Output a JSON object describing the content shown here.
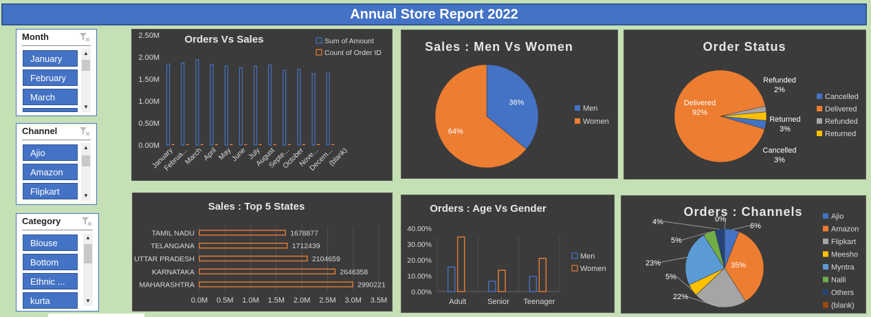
{
  "title": "Annual Store Report 2022",
  "slicers": {
    "month": {
      "header": "Month",
      "items": [
        "January",
        "February",
        "March",
        ""
      ]
    },
    "channel": {
      "header": "Channel",
      "items": [
        "Ajio",
        "Amazon",
        "Flipkart"
      ]
    },
    "category": {
      "header": "Category",
      "items": [
        "Blouse",
        "Bottom",
        "Ethnic ...",
        "kurta"
      ]
    }
  },
  "colors": {
    "blue": "#4472c4",
    "orange": "#ed7d31",
    "gray": "#a5a5a5",
    "yellow": "#ffc000",
    "lightblue": "#5b9bd5",
    "green": "#70ad47",
    "navy": "#264478",
    "brown": "#9e480e"
  },
  "chart_data": [
    {
      "id": "orders_vs_sales",
      "type": "bar",
      "title": "Orders Vs Sales",
      "categories": [
        "January",
        "Februa...",
        "March",
        "April",
        "May",
        "June",
        "July",
        "August",
        "Septe...",
        "October",
        "Nove...",
        "Decem...",
        "(blank)"
      ],
      "series": [
        {
          "name": "Sum of Amount",
          "color": "#4472c4",
          "values": [
            1840000,
            1870000,
            1940000,
            1830000,
            1800000,
            1760000,
            1790000,
            1820000,
            1700000,
            1720000,
            1620000,
            1630000,
            0
          ]
        },
        {
          "name": "Count of Order ID",
          "color": "#ed7d31",
          "values": [
            13000,
            13200,
            13500,
            12900,
            12700,
            12400,
            12600,
            12800,
            12000,
            12100,
            11400,
            11500,
            0
          ]
        }
      ],
      "ylim": [
        0,
        2500000
      ],
      "ytick_labels": [
        "0.00M",
        "0.50M",
        "1.00M",
        "1.50M",
        "2.00M",
        "2.50M"
      ],
      "legend": "top-right"
    },
    {
      "id": "sales_men_women",
      "type": "pie",
      "title": "Sales : Men Vs Women",
      "labels": [
        "Men",
        "Women"
      ],
      "values": [
        36,
        64
      ],
      "data_labels": [
        "36%",
        "64%"
      ],
      "legend": "right"
    },
    {
      "id": "order_status",
      "type": "pie",
      "title": "Order Status",
      "labels": [
        "Cancelled",
        "Delivered",
        "Refunded",
        "Returned"
      ],
      "values": [
        3,
        92,
        2,
        3
      ],
      "data_labels": [
        {
          "name": "Delivered",
          "pct": "92%"
        },
        {
          "name": "Refunded",
          "pct": "2%"
        },
        {
          "name": "Returned",
          "pct": "3%"
        },
        {
          "name": "Cancelled",
          "pct": "3%"
        }
      ],
      "legend": "right"
    },
    {
      "id": "top5_states",
      "type": "bar",
      "orientation": "horizontal",
      "title": "Sales : Top 5 States",
      "categories": [
        "TAMIL NADU",
        "TELANGANA",
        "UTTAR PRADESH",
        "KARNATAKA",
        "MAHARASHTRA"
      ],
      "values": [
        1678877,
        1712439,
        2104659,
        2646358,
        2990221
      ],
      "xlim": [
        0,
        3500000
      ],
      "xtick_labels": [
        "0.0M",
        "0.5M",
        "1.0M",
        "1.5M",
        "2.0M",
        "2.5M",
        "3.0M",
        "3.5M"
      ]
    },
    {
      "id": "age_vs_gender",
      "type": "bar",
      "title": "Orders : Age Vs Gender",
      "categories": [
        "Adult",
        "Senior",
        "Teenager"
      ],
      "series": [
        {
          "name": "Men",
          "color": "#4472c4",
          "values": [
            15.5,
            6.5,
            9.5
          ]
        },
        {
          "name": "Women",
          "color": "#ed7d31",
          "values": [
            34.5,
            13.5,
            21
          ]
        }
      ],
      "ylim": [
        0,
        40
      ],
      "ytick_labels": [
        "0.00%",
        "10.00%",
        "20.00%",
        "30.00%",
        "40.00%"
      ],
      "legend": "right"
    },
    {
      "id": "orders_channels",
      "type": "pie",
      "title": "Orders : Channels",
      "labels": [
        "Ajio",
        "Amazon",
        "Flipkart",
        "Meesho",
        "Myntra",
        "Nalli",
        "Others",
        "(blank)"
      ],
      "values": [
        6,
        35,
        22,
        5,
        23,
        5,
        4,
        0
      ],
      "data_labels": [
        "6%",
        "35%",
        "22%",
        "5%",
        "23%",
        "5%",
        "4%",
        "0%"
      ],
      "legend": "right"
    }
  ]
}
